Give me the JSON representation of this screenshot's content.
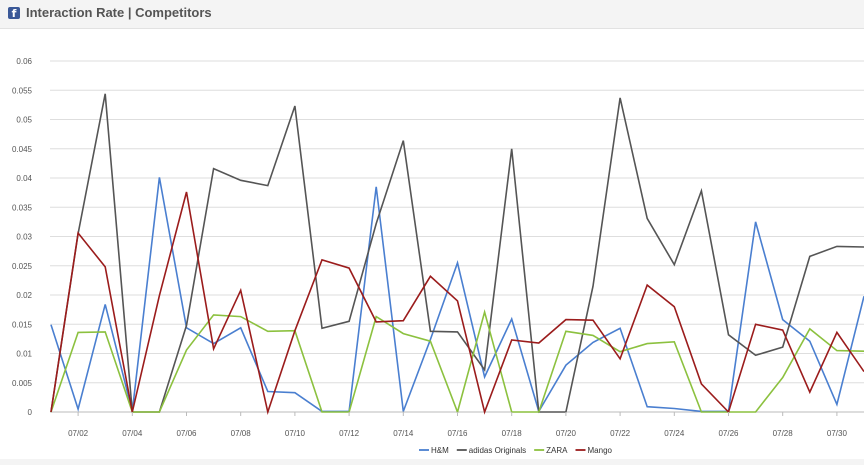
{
  "header": {
    "icon": "facebook-icon",
    "title": "Interaction Rate | Competitors"
  },
  "chart_data": {
    "type": "line",
    "title": "",
    "xlabel": "",
    "ylabel": "",
    "ylim": [
      0,
      0.06
    ],
    "yticks": [
      "0",
      "0.005",
      "0.01",
      "0.015",
      "0.02",
      "0.025",
      "0.03",
      "0.035",
      "0.04",
      "0.045",
      "0.05",
      "0.055",
      "0.06"
    ],
    "x": [
      "07/01",
      "07/02",
      "07/03",
      "07/04",
      "07/05",
      "07/06",
      "07/07",
      "07/08",
      "07/09",
      "07/10",
      "07/11",
      "07/12",
      "07/13",
      "07/14",
      "07/15",
      "07/16",
      "07/17",
      "07/18",
      "07/19",
      "07/20",
      "07/21",
      "07/22",
      "07/23",
      "07/24",
      "07/25",
      "07/26",
      "07/27",
      "07/28",
      "07/29",
      "07/30",
      "07/31"
    ],
    "xtick_labels": [
      "07/02",
      "07/04",
      "07/06",
      "07/08",
      "07/10",
      "07/12",
      "07/14",
      "07/16",
      "07/18",
      "07/20",
      "07/22",
      "07/24",
      "07/26",
      "07/28",
      "07/30"
    ],
    "grid": true,
    "legend_position": "bottom-center",
    "series": [
      {
        "name": "H&M",
        "color": "#4a7fd0",
        "values": [
          0.0149,
          0.0005,
          0.0184,
          0.0001,
          0.0401,
          0.0144,
          0.0117,
          0.0144,
          0.0035,
          0.0033,
          0.0001,
          0.0001,
          0.0385,
          0.0001,
          0.0124,
          0.0255,
          0.006,
          0.0159,
          0.0001,
          0.008,
          0.0119,
          0.0143,
          0.0009,
          0.0006,
          0.0001,
          0.0001,
          0.0325,
          0.0158,
          0.0121,
          0.0013,
          0.0198
        ]
      },
      {
        "name": "adidas Originals",
        "color": "#555555",
        "values": [
          0.0,
          0.0305,
          0.0544,
          0.0,
          0.0,
          0.0148,
          0.0416,
          0.0396,
          0.0387,
          0.0523,
          0.0143,
          0.0155,
          0.0322,
          0.0464,
          0.0138,
          0.0137,
          0.0072,
          0.045,
          0.0,
          0.0,
          0.0215,
          0.0537,
          0.0331,
          0.0252,
          0.0378,
          0.0132,
          0.0097,
          0.0111,
          0.0266,
          0.0283,
          0.0282
        ]
      },
      {
        "name": "ZARA",
        "color": "#8cc13f",
        "values": [
          0.0,
          0.0136,
          0.0137,
          0.0,
          0.0,
          0.0106,
          0.0166,
          0.0163,
          0.0138,
          0.0139,
          0.0,
          0.0,
          0.0163,
          0.0134,
          0.0121,
          0.0,
          0.0171,
          0.0,
          0.0,
          0.0138,
          0.0131,
          0.0103,
          0.0117,
          0.012,
          0.0,
          0.0,
          0.0,
          0.0059,
          0.0142,
          0.0105,
          0.0104
        ]
      },
      {
        "name": "Mango",
        "color": "#9b1c1c",
        "values": [
          0.0,
          0.0306,
          0.0248,
          0.0,
          0.0199,
          0.0376,
          0.0108,
          0.0208,
          0.0,
          0.0139,
          0.026,
          0.0246,
          0.0154,
          0.0156,
          0.0232,
          0.019,
          0.0,
          0.0123,
          0.0118,
          0.0158,
          0.0157,
          0.0091,
          0.0217,
          0.018,
          0.0048,
          0.0,
          0.015,
          0.014,
          0.0034,
          0.0136,
          0.0069
        ]
      }
    ]
  }
}
